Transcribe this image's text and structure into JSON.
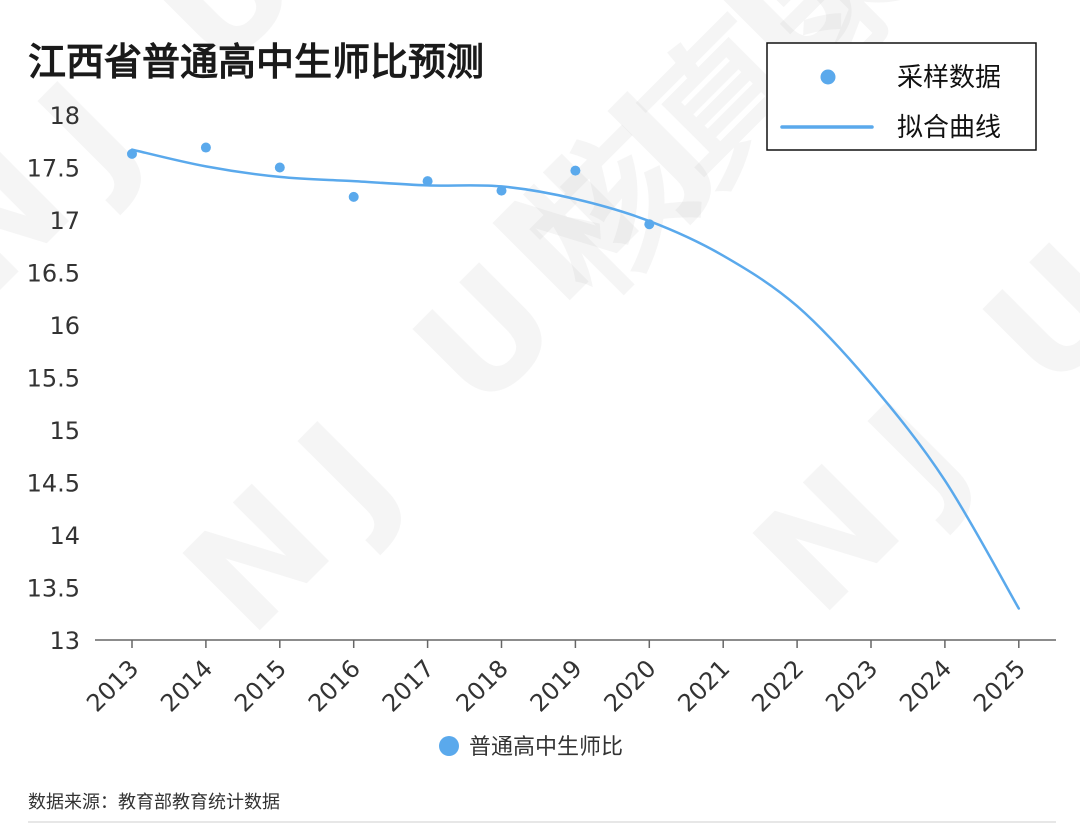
{
  "watermark": "NJU核真录",
  "source": "数据来源：教育部教育统计数据",
  "bottom_legend": {
    "label": "普通高中生师比"
  },
  "colors": {
    "series": "#5AA9EC",
    "axis": "#666666",
    "text": "#222222"
  },
  "chart_data": {
    "type": "scatter",
    "title": "江西省普通高中生师比预测",
    "xlabel": "",
    "ylabel": "",
    "ylim": [
      13,
      18
    ],
    "yticks": [
      "13",
      "13.5",
      "14",
      "14.5",
      "15",
      "15.5",
      "16",
      "16.5",
      "17",
      "17.5",
      "18"
    ],
    "categories": [
      "2013",
      "2014",
      "2015",
      "2016",
      "2017",
      "2018",
      "2019",
      "2020",
      "2021",
      "2022",
      "2023",
      "2024",
      "2025"
    ],
    "legend_position": "top-right",
    "series": [
      {
        "name": "采样数据",
        "type": "scatter",
        "x": [
          "2013",
          "2014",
          "2015",
          "2016",
          "2017",
          "2018",
          "2019",
          "2020"
        ],
        "values": [
          17.63,
          17.69,
          17.5,
          17.22,
          17.37,
          17.28,
          17.47,
          16.96
        ]
      },
      {
        "name": "拟合曲线",
        "type": "line",
        "x": [
          "2013",
          "2014",
          "2015",
          "2016",
          "2017",
          "2018",
          "2019",
          "2020",
          "2021",
          "2022",
          "2023",
          "2024",
          "2025"
        ],
        "values": [
          17.67,
          17.51,
          17.41,
          17.37,
          17.33,
          17.32,
          17.2,
          16.99,
          16.66,
          16.18,
          15.44,
          14.52,
          13.3
        ]
      }
    ]
  }
}
